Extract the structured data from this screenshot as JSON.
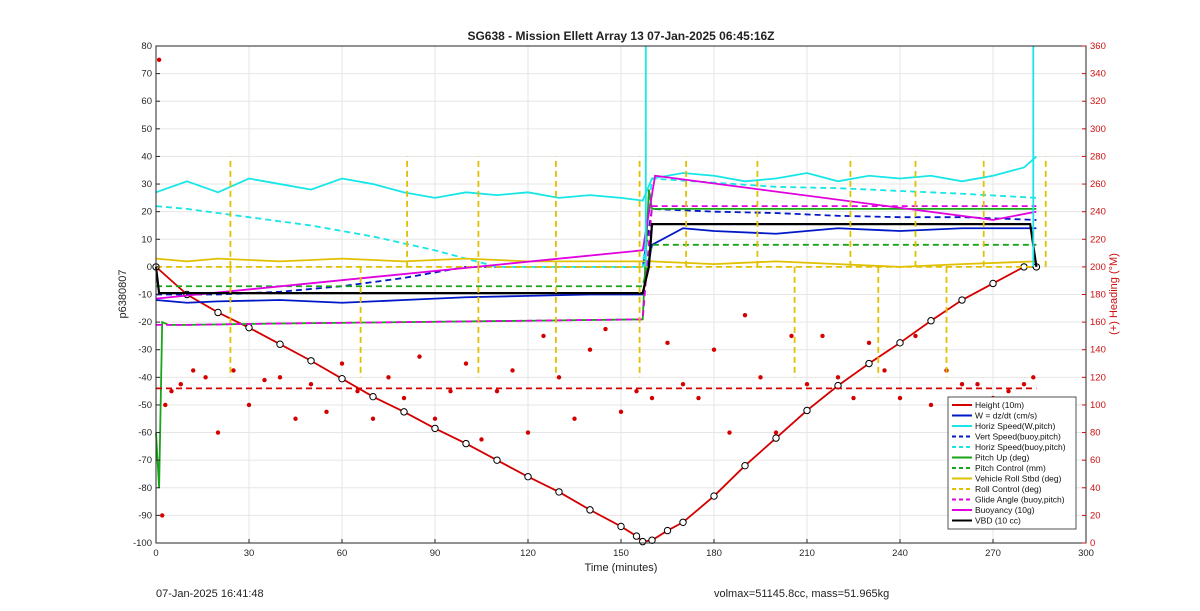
{
  "chart_data": {
    "type": "line",
    "title": "SG638 - Mission Ellett Array 13 07-Jan-2025 06:45:16Z",
    "xlabel": "Time (minutes)",
    "ylabel": "p6380807",
    "y2label": "(+) Heading (°M)",
    "xlim": [
      0,
      300
    ],
    "ylim": [
      -100,
      80
    ],
    "y2lim": [
      0,
      360
    ],
    "xticks": [
      0,
      30,
      60,
      90,
      120,
      150,
      180,
      210,
      240,
      270,
      300
    ],
    "yticks": [
      -100,
      -90,
      -80,
      -70,
      -60,
      -50,
      -40,
      -30,
      -20,
      -10,
      0,
      10,
      20,
      30,
      40,
      50,
      60,
      70,
      80
    ],
    "y2ticks": [
      0,
      20,
      40,
      60,
      80,
      100,
      120,
      140,
      160,
      180,
      200,
      220,
      240,
      260,
      280,
      300,
      320,
      340,
      360
    ],
    "grid": true,
    "legend_position": "bottom-right",
    "colors": {
      "height": "#d40000",
      "w": "#0018c8",
      "horiz_speed": "#18e6e6",
      "pitch": "#1aa41a",
      "roll": "#e0c000",
      "glide": "#e000e0",
      "vbd": "#000000",
      "heading": "#d40000",
      "right_axis": "#cc1111"
    },
    "series": [
      {
        "name": "Height (10m)",
        "color": "#d40000",
        "style": "solid-marker",
        "axis": "left",
        "x": [
          0,
          10,
          20,
          30,
          40,
          50,
          60,
          70,
          80,
          90,
          100,
          110,
          120,
          130,
          140,
          150,
          155,
          157,
          160,
          165,
          170,
          180,
          190,
          200,
          210,
          220,
          230,
          240,
          250,
          260,
          270,
          280,
          284
        ],
        "y": [
          0,
          -10,
          -16.5,
          -22,
          -28,
          -34,
          -40.5,
          -47,
          -52.5,
          -58.5,
          -64,
          -70,
          -76,
          -81.5,
          -88,
          -94,
          -97.5,
          -99.5,
          -99,
          -95.5,
          -92.5,
          -83,
          -72,
          -62,
          -52,
          -43,
          -35,
          -27.5,
          -19.5,
          -12,
          -6,
          0,
          0
        ]
      },
      {
        "name": "W = dz/dt (cm/s)",
        "color": "#0018c8",
        "style": "solid",
        "axis": "left",
        "x": [
          0,
          10,
          20,
          40,
          60,
          80,
          100,
          120,
          140,
          157,
          160,
          170,
          180,
          200,
          220,
          240,
          260,
          280,
          284
        ],
        "y": [
          -12,
          -13,
          -12.5,
          -12,
          -13,
          -12,
          -11,
          -10.5,
          -10,
          -10,
          8,
          14,
          13,
          12,
          14,
          13,
          14,
          14,
          14
        ]
      },
      {
        "name": "Horiz Speed(W,pitch)",
        "color": "#18e6e6",
        "style": "solid",
        "axis": "left",
        "x": [
          0,
          10,
          20,
          30,
          40,
          50,
          60,
          70,
          80,
          90,
          100,
          110,
          120,
          130,
          140,
          150,
          157,
          160,
          170,
          180,
          190,
          200,
          210,
          220,
          230,
          240,
          250,
          260,
          270,
          280,
          284
        ],
        "y": [
          27,
          31,
          27,
          32,
          30,
          28,
          32,
          30,
          27,
          25,
          27,
          26,
          27,
          25,
          26,
          25,
          24,
          32,
          34,
          33,
          31,
          32,
          34,
          31,
          33,
          32,
          33,
          31,
          33,
          36,
          40
        ]
      },
      {
        "name": "Vert Speed(buoy,pitch)",
        "color": "#0018c8",
        "style": "dashed",
        "axis": "left",
        "x": [
          0,
          20,
          40,
          60,
          80,
          100,
          120,
          140,
          157,
          160,
          180,
          200,
          220,
          240,
          260,
          284
        ],
        "y": [
          -10,
          -10,
          -9,
          -7,
          -4,
          0,
          0,
          0,
          0,
          21,
          20,
          19.5,
          18.5,
          18,
          18,
          17
        ]
      },
      {
        "name": "Horiz Speed(buoy,pitch)",
        "color": "#18e6e6",
        "style": "dashed",
        "axis": "left",
        "x": [
          0,
          10,
          30,
          50,
          70,
          90,
          100,
          110,
          130,
          157,
          160,
          180,
          200,
          220,
          240,
          260,
          284
        ],
        "y": [
          22,
          21,
          18,
          15,
          11,
          6,
          3,
          0,
          0,
          0,
          32,
          30.5,
          29,
          28.5,
          27.5,
          26.5,
          25
        ]
      },
      {
        "name": "Pitch Up (deg)",
        "color": "#1aa41a",
        "style": "solid",
        "axis": "left",
        "x": [
          0,
          1,
          2,
          4,
          6,
          10,
          40,
          80,
          120,
          157,
          159,
          160,
          180,
          220,
          260,
          284
        ],
        "y": [
          -60,
          -80,
          -20,
          -21,
          -21,
          -21,
          -20.5,
          -20,
          -19.5,
          -19,
          28,
          21,
          21,
          21,
          21,
          21
        ]
      },
      {
        "name": "Pitch Control (mm)",
        "color": "#1aa41a",
        "style": "dashed",
        "axis": "left",
        "x": [
          0,
          10,
          40,
          80,
          120,
          157,
          160,
          200,
          240,
          284
        ],
        "y": [
          -7,
          -7,
          -7,
          -7,
          -7,
          -7,
          8,
          8,
          8,
          8
        ]
      },
      {
        "name": "Vehicle Roll Stbd (deg)",
        "color": "#e0c000",
        "style": "solid",
        "axis": "left",
        "x": [
          0,
          10,
          20,
          40,
          60,
          80,
          100,
          120,
          140,
          157,
          160,
          180,
          200,
          220,
          240,
          260,
          284
        ],
        "y": [
          3,
          2,
          3,
          2,
          3,
          2,
          3,
          2,
          2,
          2,
          2,
          1,
          2,
          1,
          0,
          1,
          2
        ]
      },
      {
        "name": "Roll Control (deg)",
        "color": "#e0c000",
        "style": "dashed",
        "axis": "left",
        "x": [
          0,
          284
        ],
        "y": [
          0,
          0
        ]
      },
      {
        "name": "Glide Angle (buoy,pitch)",
        "color": "#e000e0",
        "style": "dashed",
        "axis": "left",
        "x": [
          0,
          10,
          40,
          80,
          120,
          157,
          160,
          200,
          240,
          284
        ],
        "y": [
          -21,
          -21,
          -20.5,
          -20,
          -19.5,
          -19,
          22,
          22,
          22,
          22
        ]
      },
      {
        "name": "Buoyancy (10g)",
        "color": "#e000e0",
        "style": "solid",
        "axis": "left",
        "x": [
          0,
          157,
          161,
          270,
          284
        ],
        "y": [
          -11.5,
          6,
          33,
          17,
          20
        ]
      },
      {
        "name": "VBD (10 cc)",
        "color": "#000000",
        "style": "solid",
        "axis": "left",
        "x": [
          0,
          1,
          157,
          159,
          160,
          282,
          284
        ],
        "y": [
          0,
          -9.5,
          -9.5,
          0,
          15.5,
          15.5,
          0
        ]
      },
      {
        "name": "Heading",
        "color": "#d40000",
        "style": "dots",
        "axis": "right",
        "x": [
          1,
          2,
          3,
          5,
          8,
          12,
          16,
          20,
          25,
          30,
          35,
          40,
          45,
          50,
          55,
          60,
          65,
          70,
          75,
          80,
          85,
          90,
          95,
          100,
          105,
          110,
          115,
          120,
          125,
          130,
          135,
          140,
          145,
          150,
          155,
          160,
          165,
          170,
          175,
          180,
          185,
          190,
          195,
          200,
          205,
          210,
          215,
          220,
          225,
          230,
          235,
          240,
          245,
          250,
          255,
          260,
          265,
          270,
          275,
          280,
          283
        ],
        "y": [
          350,
          20,
          100,
          110,
          115,
          125,
          120,
          80,
          125,
          100,
          118,
          120,
          90,
          115,
          95,
          130,
          110,
          90,
          120,
          105,
          135,
          90,
          110,
          130,
          75,
          110,
          125,
          80,
          150,
          120,
          90,
          140,
          155,
          95,
          110,
          105,
          145,
          115,
          105,
          140,
          80,
          165,
          120,
          80,
          150,
          115,
          150,
          120,
          105,
          145,
          125,
          105,
          150,
          100,
          125,
          115,
          115,
          105,
          110,
          115,
          120
        ]
      },
      {
        "name": "Mean heading",
        "color": "#d40000",
        "style": "dashed",
        "axis": "right",
        "x": [
          0,
          284
        ],
        "y": [
          112,
          112
        ]
      }
    ],
    "spikes": [
      {
        "series": "Roll Control (deg)",
        "x": [
          24,
          81,
          104,
          129,
          156,
          171,
          194,
          224,
          245,
          267,
          287
        ],
        "y": 40
      },
      {
        "series": "Roll Control (deg)",
        "x": [
          24,
          66,
          104,
          129,
          156,
          206,
          233,
          255
        ],
        "y": -40
      },
      {
        "series": "Horiz Speed(W,pitch)",
        "x": [
          158,
          283
        ],
        "y": 80
      }
    ]
  },
  "footer": {
    "timestamp": "07-Jan-2025 16:41:48",
    "params": "volmax=51145.8cc, mass=51.965kg"
  }
}
